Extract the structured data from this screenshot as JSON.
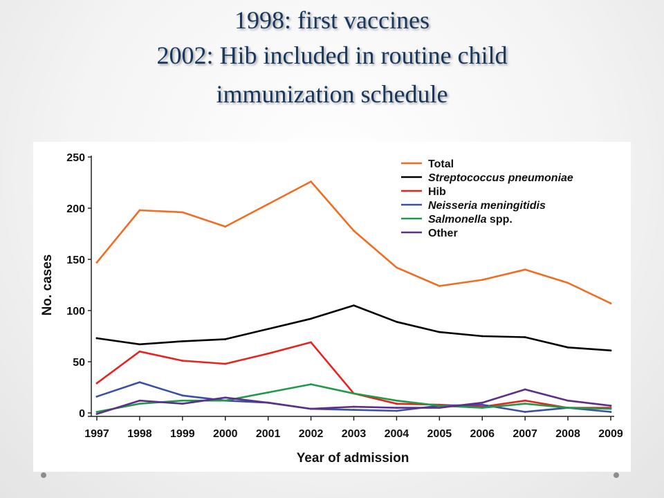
{
  "slide": {
    "title_line1": "1998: first vaccines",
    "title_line2": "2002: Hib included in routine child",
    "title_line3": "immunization schedule"
  },
  "chart_data": {
    "type": "line",
    "title": "",
    "xlabel": "Year of admission",
    "ylabel": "No. cases",
    "x": [
      "1997",
      "1998",
      "1999",
      "2000",
      "2001",
      "2002",
      "2003",
      "2004",
      "2005",
      "2006",
      "2007",
      "2008",
      "2009"
    ],
    "ylim": [
      0,
      250
    ],
    "yticks": [
      "0",
      "50",
      "100",
      "150",
      "200",
      "250"
    ],
    "grid": false,
    "legend_position": "top-right",
    "series": [
      {
        "name": "Total",
        "color": "#f26c21",
        "italic": false,
        "values": [
          147,
          198,
          196,
          182,
          204,
          226,
          178,
          142,
          124,
          130,
          140,
          127,
          107
        ]
      },
      {
        "name": "Streptococcus pneumoniae",
        "color": "#000000",
        "italic": true,
        "values": [
          73,
          67,
          70,
          72,
          82,
          92,
          105,
          89,
          79,
          75,
          74,
          64,
          61
        ]
      },
      {
        "name": "Hib",
        "color": "#e8231e",
        "italic": false,
        "values": [
          29,
          60,
          51,
          48,
          58,
          69,
          19,
          9,
          8,
          6,
          12,
          5,
          5
        ]
      },
      {
        "name": "Neisseria meningitidis",
        "color": "#3a50a4",
        "italic": true,
        "values": [
          16,
          30,
          17,
          12,
          10,
          4,
          3,
          2,
          7,
          8,
          1,
          5,
          1
        ]
      },
      {
        "name": "Salmonella",
        "name_suffix": " spp.",
        "color": "#1e9a48",
        "italic": true,
        "values": [
          1,
          9,
          12,
          12,
          20,
          28,
          19,
          12,
          7,
          5,
          9,
          5,
          4
        ]
      },
      {
        "name": "Other",
        "color": "#5d2e8c",
        "italic": false,
        "values": [
          -1,
          12,
          9,
          15,
          10,
          4,
          6,
          5,
          5,
          10,
          23,
          12,
          7
        ]
      }
    ]
  }
}
